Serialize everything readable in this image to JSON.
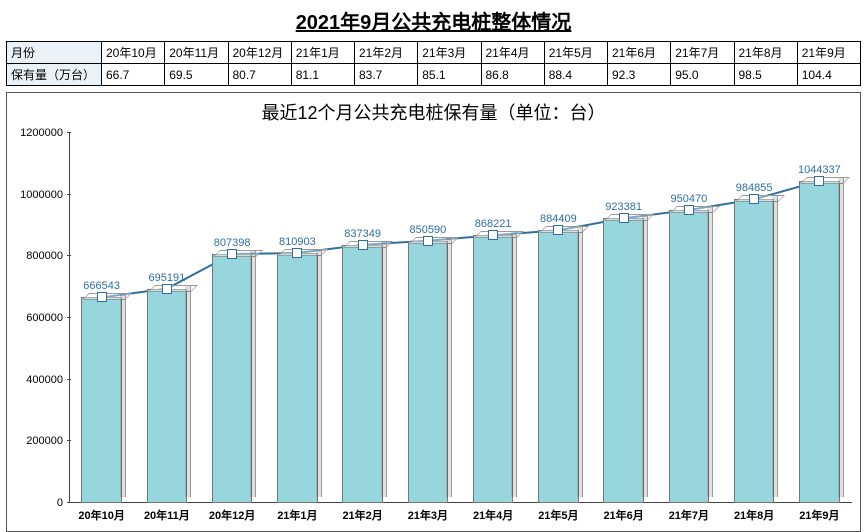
{
  "title": "2021年9月公共充电桩整体情况",
  "title_fontsize": 20,
  "table": {
    "row1_header": "月份",
    "row2_header": "保有量（万台）",
    "months": [
      "20年10月",
      "20年11月",
      "20年12月",
      "21年1月",
      "21年2月",
      "21年3月",
      "21年4月",
      "21年5月",
      "21年6月",
      "21年7月",
      "21年8月",
      "21年9月"
    ],
    "values": [
      "66.7",
      "69.5",
      "80.7",
      "81.1",
      "83.7",
      "85.1",
      "86.8",
      "88.4",
      "92.3",
      "95.0",
      "98.5",
      "104.4"
    ],
    "header_bg": "#eaf2f8"
  },
  "chart": {
    "title": "最近12个月公共充电桩保有量（单位：台）",
    "type": "bar+line",
    "categories": [
      "20年10月",
      "20年11月",
      "20年12月",
      "21年1月",
      "21年2月",
      "21年3月",
      "21年4月",
      "21年5月",
      "21年6月",
      "21年7月",
      "21年8月",
      "21年9月"
    ],
    "values": [
      666543,
      695191,
      807398,
      810903,
      837349,
      850590,
      868221,
      884409,
      923381,
      950470,
      984855,
      1044337
    ],
    "bar_color": "#96d6dc",
    "line_color": "#2e6ea1",
    "label_color": "#2e6ea1",
    "ylim": [
      0,
      1200000
    ],
    "ytick_step": 200000,
    "yticks": [
      0,
      200000,
      400000,
      600000,
      800000,
      1000000,
      1200000
    ],
    "label_fontsize": 11,
    "axis_color": "#444",
    "background_color": "#ffffff"
  }
}
